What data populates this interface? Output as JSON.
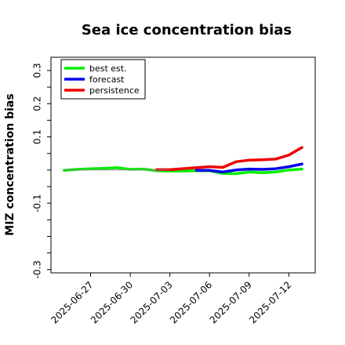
{
  "chart_data": {
    "type": "line",
    "title": "Sea ice concentration bias",
    "xlabel": "",
    "ylabel": "MIZ concentration bias",
    "ylim": [
      -0.31,
      0.34
    ],
    "xlim": [
      "2025-06-24",
      "2025-07-14"
    ],
    "grid": false,
    "legend": "top-left",
    "xticks": [
      {
        "date": "2025-06-27",
        "label": "2025-06-27",
        "color": "#000000"
      },
      {
        "date": "2025-06-30",
        "label": "2025-06-30",
        "color": "#000000"
      },
      {
        "date": "2025-07-03",
        "label": "2025-07-03",
        "color": "#228b22"
      },
      {
        "date": "2025-07-06",
        "label": "2025-07-06",
        "color": "#000000"
      },
      {
        "date": "2025-07-09",
        "label": "2025-07-09",
        "color": "#000000"
      },
      {
        "date": "2025-07-12",
        "label": "2025-07-12",
        "color": "#000000"
      }
    ],
    "yticks": [
      {
        "value": 0.3,
        "label": "0.3"
      },
      {
        "value": 0.25,
        "label": ""
      },
      {
        "value": 0.2,
        "label": "0.2"
      },
      {
        "value": 0.15,
        "label": ""
      },
      {
        "value": 0.1,
        "label": "0.1"
      },
      {
        "value": 0.05,
        "label": ""
      },
      {
        "value": 0.0,
        "label": ""
      },
      {
        "value": -0.05,
        "label": ""
      },
      {
        "value": -0.1,
        "label": "-0.1"
      },
      {
        "value": -0.15,
        "label": ""
      },
      {
        "value": -0.2,
        "label": ""
      },
      {
        "value": -0.25,
        "label": ""
      },
      {
        "value": -0.3,
        "label": "-0.3"
      }
    ],
    "series": [
      {
        "name": "best est.",
        "color": "#00ee00",
        "thick": true,
        "points": [
          [
            "2025-06-25",
            -0.001
          ],
          [
            "2025-06-26",
            0.002
          ],
          [
            "2025-06-27",
            0.004
          ],
          [
            "2025-06-28",
            0.005
          ],
          [
            "2025-06-29",
            0.007
          ],
          [
            "2025-06-30",
            0.002
          ],
          [
            "2025-07-01",
            0.003
          ],
          [
            "2025-07-02",
            -0.002
          ],
          [
            "2025-07-03",
            -0.003
          ],
          [
            "2025-07-04",
            -0.003
          ],
          [
            "2025-07-05",
            -0.002
          ],
          [
            "2025-07-06",
            -0.002
          ],
          [
            "2025-07-07",
            -0.01
          ],
          [
            "2025-07-08",
            -0.011
          ],
          [
            "2025-07-09",
            -0.006
          ],
          [
            "2025-07-10",
            -0.008
          ],
          [
            "2025-07-11",
            -0.006
          ],
          [
            "2025-07-12",
            0.0
          ],
          [
            "2025-07-13",
            0.003
          ]
        ]
      },
      {
        "name": "forecast",
        "color": "#0000ee",
        "thick": true,
        "points": [
          [
            "2025-07-05",
            -0.001
          ],
          [
            "2025-07-06",
            -0.001
          ],
          [
            "2025-07-07",
            -0.006
          ],
          [
            "2025-07-08",
            0.0
          ],
          [
            "2025-07-09",
            0.003
          ],
          [
            "2025-07-10",
            0.002
          ],
          [
            "2025-07-11",
            0.004
          ],
          [
            "2025-07-12",
            0.01
          ],
          [
            "2025-07-13",
            0.018
          ]
        ]
      },
      {
        "name": "persistence",
        "color": "#ee0000",
        "thick": true,
        "points": [
          [
            "2025-07-02",
            0.001
          ],
          [
            "2025-07-03",
            0.001
          ],
          [
            "2025-07-06",
            0.01
          ],
          [
            "2025-07-07",
            0.008
          ],
          [
            "2025-07-08",
            0.025
          ],
          [
            "2025-07-09",
            0.03
          ],
          [
            "2025-07-10",
            0.031
          ],
          [
            "2025-07-11",
            0.033
          ],
          [
            "2025-07-12",
            0.045
          ],
          [
            "2025-07-13",
            0.068
          ]
        ]
      },
      {
        "name": "",
        "color": "#888888",
        "thick": false,
        "points": [
          [
            "2025-06-25",
            0.0
          ],
          [
            "2025-07-03",
            0.0
          ]
        ]
      },
      {
        "name": "",
        "color": "#ee0000",
        "thick": false,
        "points": [
          [
            "2025-07-03",
            0.001
          ],
          [
            "2025-07-06",
            0.01
          ]
        ]
      }
    ]
  }
}
